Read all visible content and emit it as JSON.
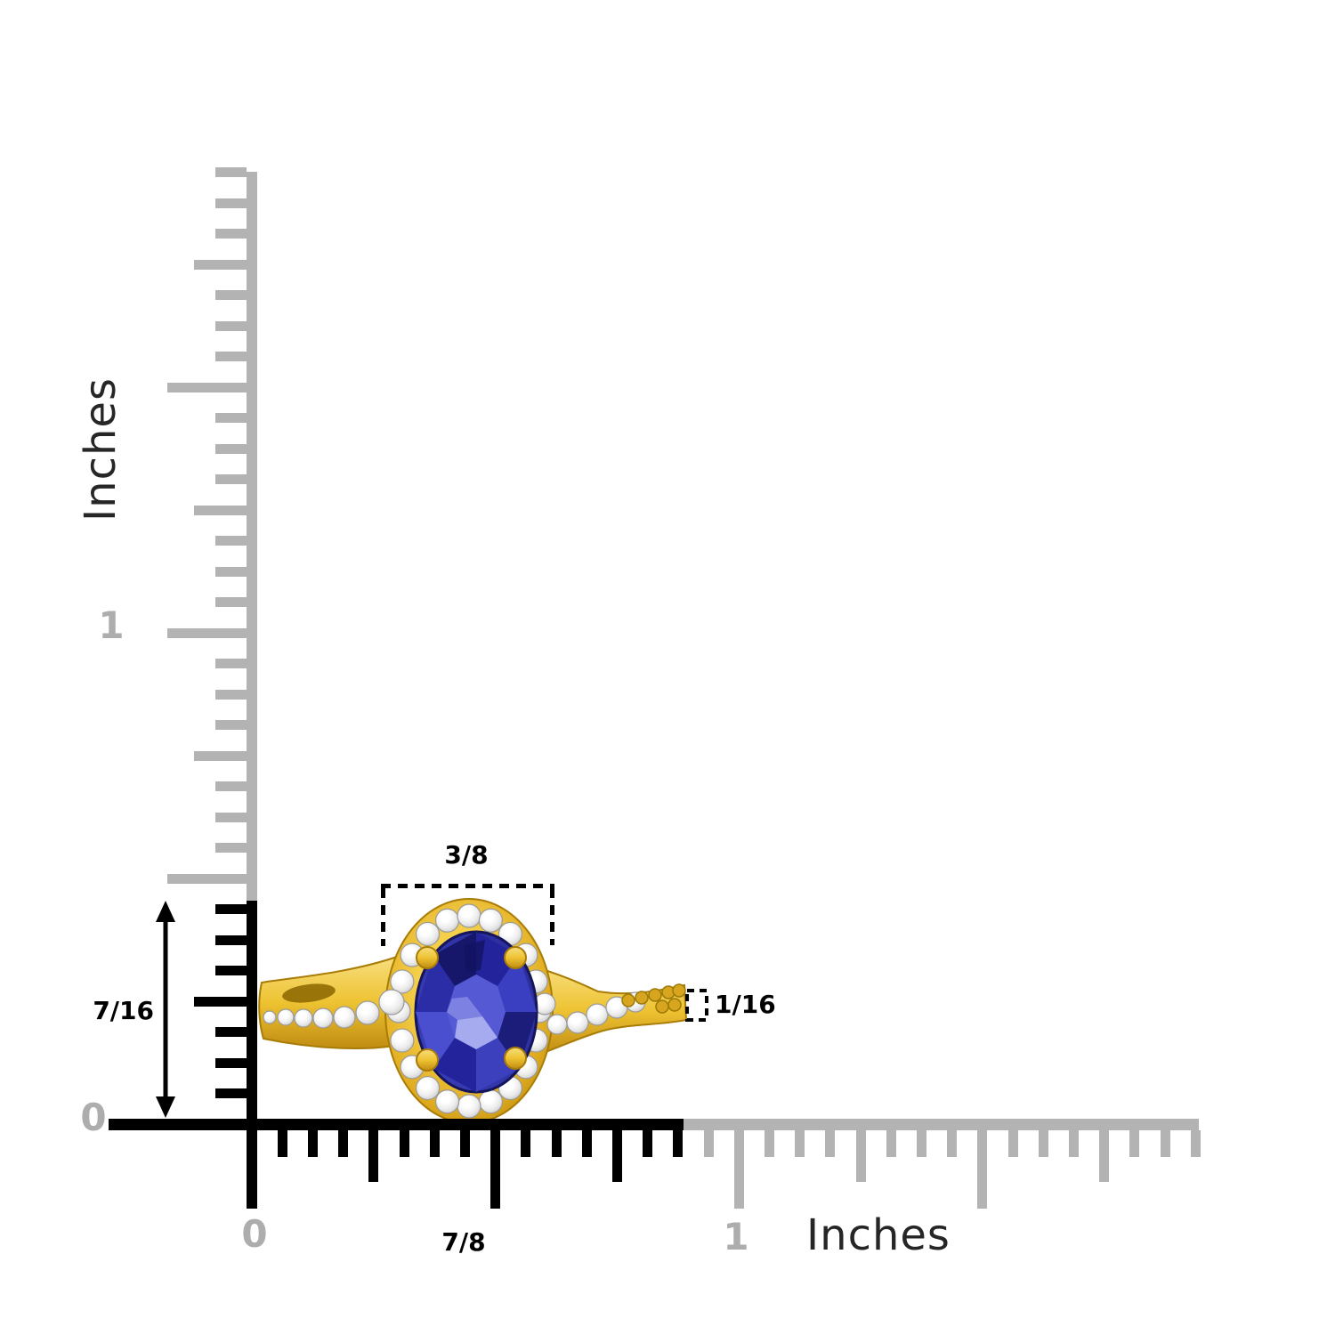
{
  "diagram_title": "ring-size-measurement-diagram",
  "rulers": {
    "unit": "Inches",
    "ticks_per_inch": 16,
    "vertical": {
      "unit_label": "Inches",
      "zero_label": "0",
      "one_label": "1",
      "highlighted_extent": "7/16"
    },
    "horizontal": {
      "unit_label": "Inches",
      "zero_label": "0",
      "one_label": "1",
      "highlighted_extent": "7/8"
    }
  },
  "annotations": {
    "halo_width": "3/8",
    "ring_height": "7/16",
    "band_width": "1/16",
    "ring_width": "7/8"
  },
  "ring": {
    "description": "yellow-gold bypass ring, oval blue tanzanite center, diamond swirl halo, pave diamond shoulders"
  },
  "colors": {
    "ruler_gray": "#b3b3b3",
    "ruler_black": "#000000",
    "label_gray": "#adadad",
    "text_dark": "#262626",
    "annotation_black": "#000000",
    "gold": "#eec332",
    "gold_light": "#f7de7e",
    "gold_dark": "#b8890f",
    "gold_deep": "#a87c06",
    "tanzanite": "#3a3eb8",
    "tanzanite_dark": "#1d1e7e",
    "tanzanite_light": "#8e93e8",
    "diamond_white": "#ffffff",
    "diamond_shade": "#bfbfbf"
  }
}
